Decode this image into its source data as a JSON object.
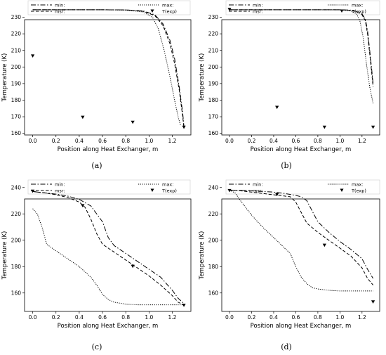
{
  "chart_data": [
    {
      "type": "line",
      "caption": "(a)",
      "xlabel": "Position along Heat Exchanger, m",
      "ylabel": "Temperature (K)",
      "xlim": [
        -0.07,
        1.36
      ],
      "ylim": [
        159,
        237
      ],
      "xticks": [
        "0.0",
        "0.2",
        "0.4",
        "0.6",
        "0.8",
        "1.0",
        "1.2"
      ],
      "yticks": [
        "160",
        "170",
        "180",
        "190",
        "200",
        "210",
        "220",
        "230"
      ],
      "legend": {
        "placement": "top",
        "entries": [
          "min:",
          "msr:",
          "max:",
          "T(exp)"
        ]
      },
      "series": [
        {
          "name": "min:",
          "style": "dashdot",
          "x": [
            0,
            0.2,
            0.4,
            0.6,
            0.8,
            0.95,
            1.05,
            1.12,
            1.18,
            1.22,
            1.26,
            1.29,
            1.3
          ],
          "y": [
            234.5,
            234.5,
            234.5,
            234.5,
            234.4,
            233.8,
            231.5,
            226,
            216,
            205,
            188,
            172,
            164
          ]
        },
        {
          "name": "msr:",
          "style": "dashed",
          "x": [
            0,
            0.2,
            0.4,
            0.6,
            0.8,
            0.95,
            1.05,
            1.12,
            1.18,
            1.22,
            1.26,
            1.29,
            1.3
          ],
          "y": [
            234.5,
            234.5,
            234.5,
            234.5,
            234.4,
            233.6,
            231,
            225,
            214,
            202,
            186,
            170,
            163
          ]
        },
        {
          "name": "max:",
          "style": "dotted",
          "x": [
            0,
            0.2,
            0.4,
            0.6,
            0.8,
            0.95,
            1.03,
            1.08,
            1.13,
            1.18,
            1.22,
            1.25,
            1.27
          ],
          "y": [
            234.5,
            234.5,
            234.5,
            234.5,
            234.3,
            233.2,
            230,
            223,
            210,
            194,
            180,
            170,
            165
          ]
        },
        {
          "name": "T(exp)",
          "style": "marker",
          "x": [
            0,
            0.43,
            0.86,
            1.3
          ],
          "y": [
            206.5,
            169.5,
            166.5,
            163.5
          ]
        }
      ]
    },
    {
      "type": "line",
      "caption": "(b)",
      "xlabel": "Position along Heat Exchanger, m",
      "ylabel": "Temperature (K)",
      "xlim": [
        -0.07,
        1.36
      ],
      "ylim": [
        159,
        237
      ],
      "xticks": [
        "0.0",
        "0.2",
        "0.4",
        "0.6",
        "0.8",
        "1.0",
        "1.2"
      ],
      "yticks": [
        "160",
        "170",
        "180",
        "190",
        "200",
        "210",
        "220",
        "230"
      ],
      "legend": {
        "placement": "top",
        "entries": [
          "min:",
          "msr:",
          "max:",
          "T(exp)"
        ]
      },
      "series": [
        {
          "name": "min:",
          "style": "dashdot",
          "x": [
            0,
            0.2,
            0.4,
            0.6,
            0.8,
            1.0,
            1.1,
            1.15,
            1.2,
            1.23,
            1.25,
            1.27,
            1.29,
            1.3
          ],
          "y": [
            234.5,
            234.5,
            234.5,
            234.5,
            234.5,
            234.5,
            234.3,
            233.5,
            232,
            229,
            222,
            210,
            197,
            190
          ]
        },
        {
          "name": "msr:",
          "style": "dashed",
          "x": [
            0,
            0.2,
            0.4,
            0.6,
            0.8,
            1.0,
            1.1,
            1.15,
            1.2,
            1.23,
            1.25,
            1.27,
            1.29,
            1.3
          ],
          "y": [
            234.5,
            234.5,
            234.5,
            234.5,
            234.5,
            234.5,
            234.2,
            233.4,
            231.5,
            228,
            220,
            208,
            195,
            188
          ]
        },
        {
          "name": "max:",
          "style": "dotted",
          "x": [
            0,
            0.2,
            0.4,
            0.6,
            0.8,
            1.0,
            1.1,
            1.15,
            1.18,
            1.21,
            1.24,
            1.27,
            1.3
          ],
          "y": [
            234.5,
            234.5,
            234.5,
            234.5,
            234.5,
            234.4,
            233.8,
            232,
            228,
            218,
            202,
            188,
            178
          ]
        },
        {
          "name": "T(exp)",
          "style": "marker",
          "x": [
            0,
            0.43,
            0.86,
            1.3
          ],
          "y": [
            234.5,
            175.5,
            163.5,
            163.5
          ]
        }
      ]
    },
    {
      "type": "line",
      "caption": "(c)",
      "xlabel": "Position along Heat Exchanger, m",
      "ylabel": "Temperature (K)",
      "xlim": [
        -0.07,
        1.36
      ],
      "ylim": [
        146,
        242
      ],
      "xticks": [
        "0.0",
        "0.2",
        "0.4",
        "0.6",
        "0.8",
        "1.0",
        "1.2"
      ],
      "yticks": [
        "160",
        "180",
        "200",
        "220",
        "240"
      ],
      "legend": {
        "placement": "top",
        "entries": [
          "min:",
          "msr:",
          "max:",
          "T(exp)"
        ]
      },
      "series": [
        {
          "name": "min:",
          "style": "dashdot",
          "x": [
            0,
            0.1,
            0.2,
            0.3,
            0.4,
            0.5,
            0.6,
            0.65,
            0.7,
            0.8,
            0.9,
            1.0,
            1.1,
            1.2,
            1.25,
            1.3
          ],
          "y": [
            237,
            236,
            235,
            233.5,
            231,
            226,
            214,
            202,
            196,
            190,
            184,
            178,
            172,
            162,
            156,
            152
          ]
        },
        {
          "name": "msr:",
          "style": "dashed",
          "x": [
            0,
            0.1,
            0.2,
            0.3,
            0.4,
            0.45,
            0.5,
            0.55,
            0.6,
            0.7,
            0.8,
            0.9,
            1.0,
            1.1,
            1.2,
            1.25,
            1.3
          ],
          "y": [
            237,
            236,
            234.5,
            232.5,
            229,
            225,
            216,
            205,
            197,
            191,
            185,
            179,
            173,
            166,
            158,
            153,
            151
          ]
        },
        {
          "name": "max:",
          "style": "dotted",
          "x": [
            0,
            0.04,
            0.08,
            0.12,
            0.2,
            0.3,
            0.4,
            0.5,
            0.55,
            0.6,
            0.65,
            0.7,
            0.8,
            0.9,
            1.0,
            1.1,
            1.2,
            1.3
          ],
          "y": [
            224,
            220,
            210,
            197,
            192,
            186,
            180,
            172,
            166,
            159,
            155,
            153,
            151.5,
            151,
            151,
            151,
            151,
            151
          ]
        },
        {
          "name": "T(exp)",
          "style": "marker",
          "x": [
            0,
            0.43,
            0.86,
            1.3
          ],
          "y": [
            237,
            226,
            180,
            150.5
          ]
        }
      ]
    },
    {
      "type": "line",
      "caption": "(d)",
      "xlabel": "Position along Heat Exchanger, m",
      "ylabel": "Temperature (K)",
      "xlim": [
        -0.07,
        1.36
      ],
      "ylim": [
        146,
        242
      ],
      "xticks": [
        "0.0",
        "0.2",
        "0.4",
        "0.6",
        "0.8",
        "1.0",
        "1.2"
      ],
      "yticks": [
        "160",
        "180",
        "200",
        "220",
        "240"
      ],
      "legend": {
        "placement": "top",
        "entries": [
          "min:",
          "msr:",
          "max:",
          "T(exp)"
        ]
      },
      "series": [
        {
          "name": "min:",
          "style": "dashdot",
          "x": [
            0,
            0.1,
            0.2,
            0.3,
            0.4,
            0.5,
            0.6,
            0.65,
            0.7,
            0.75,
            0.8,
            0.9,
            1.0,
            1.1,
            1.2,
            1.25,
            1.3
          ],
          "y": [
            238,
            237.8,
            237.5,
            237,
            236.5,
            235.5,
            234,
            233,
            230,
            222,
            214,
            206,
            199,
            193,
            186,
            178,
            171
          ]
        },
        {
          "name": "msr:",
          "style": "dashed",
          "x": [
            0,
            0.1,
            0.2,
            0.3,
            0.4,
            0.5,
            0.55,
            0.6,
            0.65,
            0.7,
            0.8,
            0.9,
            1.0,
            1.1,
            1.2,
            1.25,
            1.3
          ],
          "y": [
            238,
            237.5,
            236.5,
            235.5,
            234.5,
            233.5,
            233,
            229,
            221,
            213,
            206,
            200,
            194,
            188,
            179,
            171,
            166
          ]
        },
        {
          "name": "max:",
          "style": "dotted",
          "x": [
            0,
            0.05,
            0.1,
            0.2,
            0.3,
            0.4,
            0.5,
            0.55,
            0.6,
            0.65,
            0.7,
            0.75,
            0.8,
            0.9,
            1.0,
            1.1,
            1.2,
            1.3
          ],
          "y": [
            238,
            236,
            230,
            219,
            210,
            202,
            194,
            190,
            180,
            172,
            167,
            164,
            163,
            162,
            161.5,
            161.5,
            161.5,
            161.5
          ]
        },
        {
          "name": "T(exp)",
          "style": "marker",
          "x": [
            0,
            0.43,
            0.86,
            1.3
          ],
          "y": [
            237.5,
            234.5,
            196,
            153
          ]
        }
      ]
    }
  ]
}
